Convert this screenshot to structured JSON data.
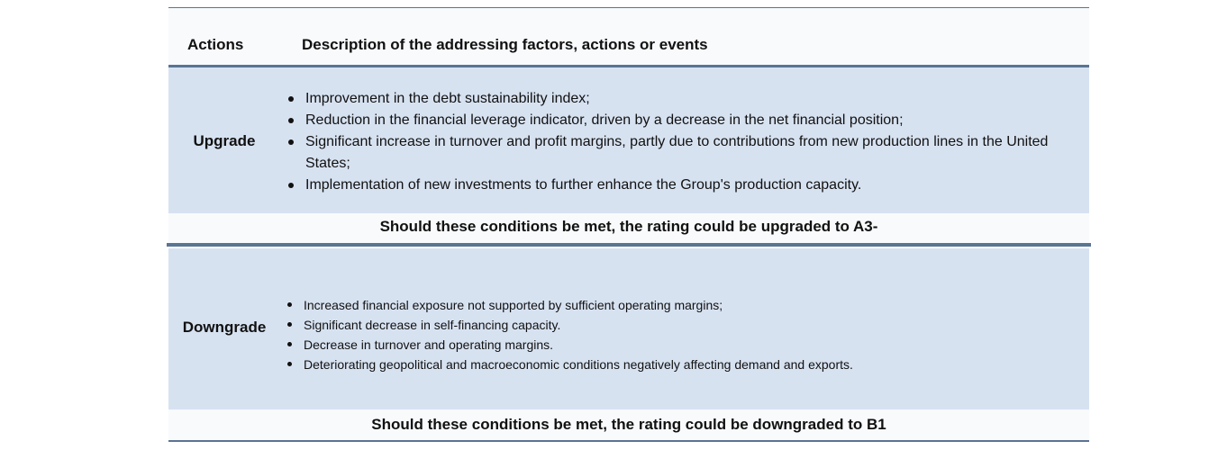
{
  "header": {
    "actions_label": "Actions",
    "description_label": "Description of the addressing factors, actions or events"
  },
  "upgrade": {
    "label": "Upgrade",
    "items": [
      "Improvement in the debt sustainability index;",
      "Reduction in the financial leverage indicator, driven by a decrease in the net financial position;",
      "Significant increase in turnover and profit margins, partly due to contributions from new production lines in the United States;",
      "Implementation of new investments to further enhance the Group's production capacity."
    ],
    "conclusion": "Should these conditions be met, the rating could be upgraded to A3-"
  },
  "downgrade": {
    "label": "Downgrade",
    "items": [
      "Increased financial exposure not supported by sufficient operating margins;",
      "Significant decrease in self-financing capacity.",
      "Decrease in turnover and operating margins.",
      "Deteriorating geopolitical and macroeconomic conditions negatively affecting demand and exports."
    ],
    "conclusion": "Should these conditions be met, the rating could be downgraded to B1"
  },
  "colors": {
    "band": "#d7e2f1",
    "rule": "#5a7493",
    "header_bg": "#f8fafc"
  }
}
